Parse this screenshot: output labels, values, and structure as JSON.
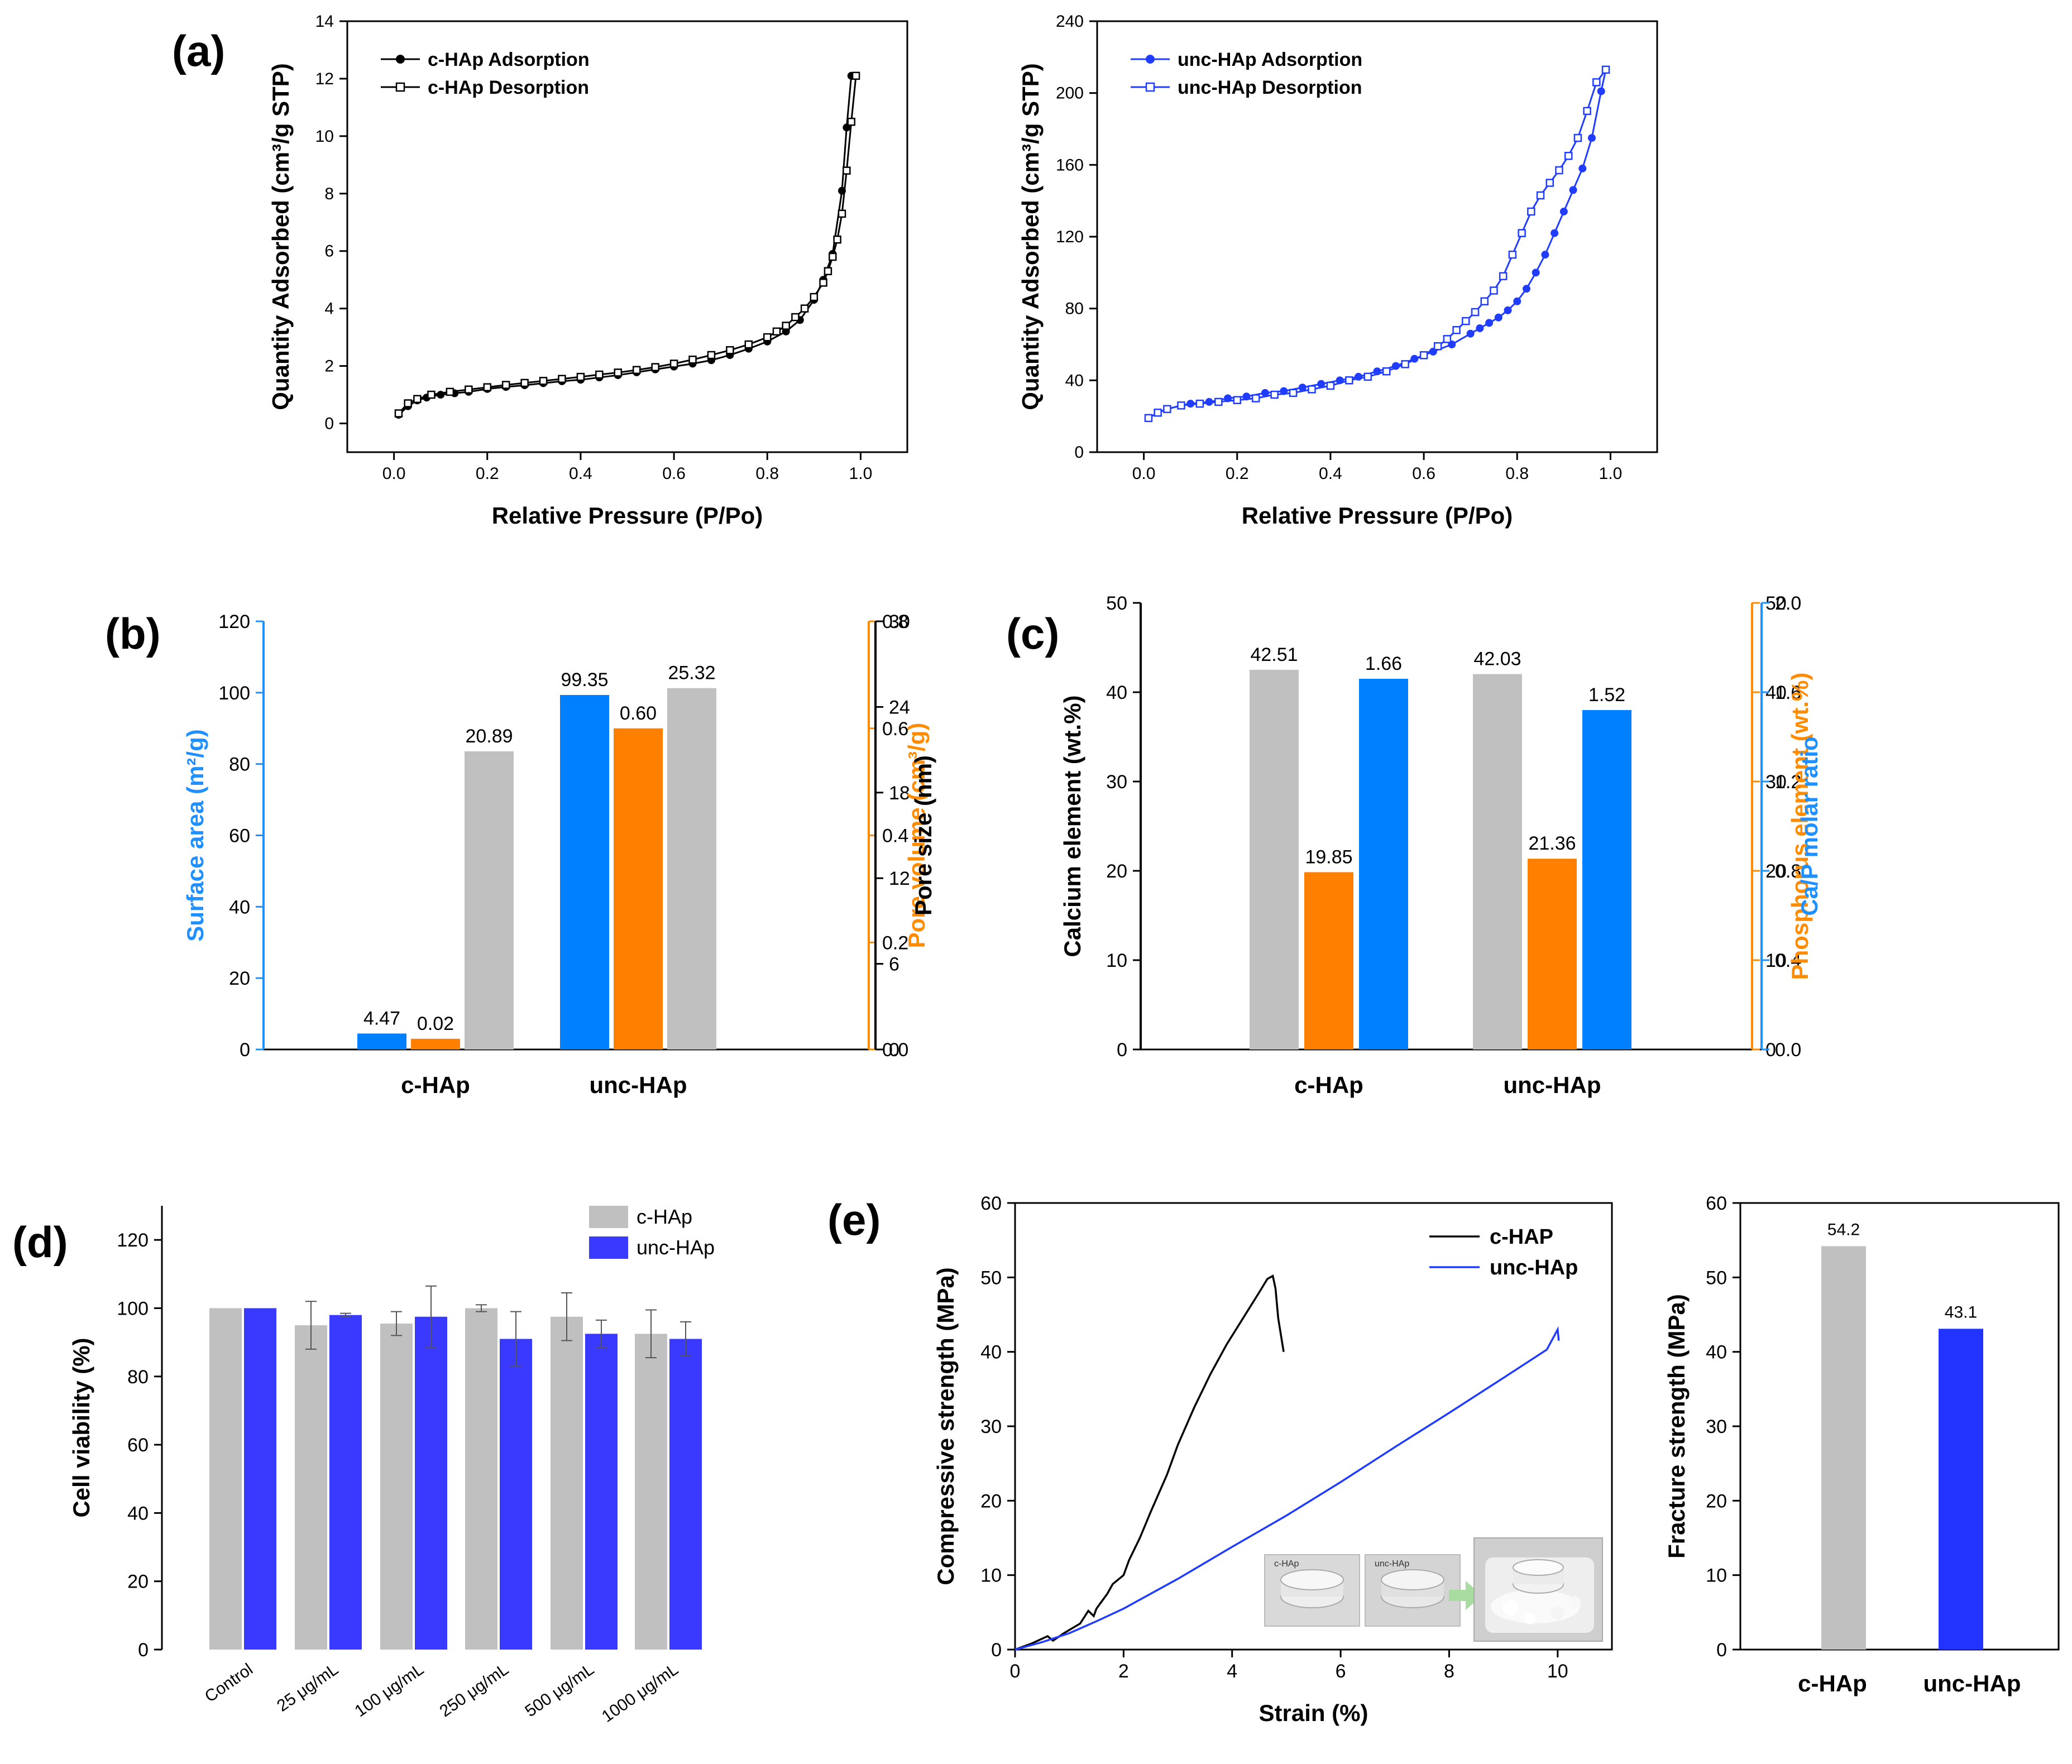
{
  "colors": {
    "black": "#000000",
    "blue_line": "#1f3cff",
    "bar_gray": "#c0c0c0",
    "bar_blue": "#0080ff",
    "bar_orange": "#ff8000",
    "bar_blue_viol": "#3a3aff",
    "axis_blue": "#1e90ff",
    "axis_orange": "#ff8c00"
  },
  "chart_data": [
    {
      "id": "a1",
      "panel_label": "(a)",
      "type": "line",
      "xlabel": "Relative Pressure (P/Po)",
      "ylabel": "Quantity Adsorbed (cm³/g STP)",
      "xlim": [
        -0.1,
        1.1
      ],
      "ylim": [
        -1,
        14
      ],
      "xticks": [
        "0.0",
        "0.2",
        "0.4",
        "0.6",
        "0.8",
        "1.0"
      ],
      "yticks": [
        "0",
        "2",
        "4",
        "6",
        "8",
        "10",
        "12",
        "14"
      ],
      "series": [
        {
          "name": "c-HAp Adsorption",
          "marker": "filled-circle",
          "x": [
            0.01,
            0.03,
            0.05,
            0.07,
            0.1,
            0.13,
            0.16,
            0.2,
            0.24,
            0.28,
            0.32,
            0.36,
            0.4,
            0.44,
            0.48,
            0.52,
            0.56,
            0.6,
            0.64,
            0.68,
            0.72,
            0.76,
            0.8,
            0.84,
            0.87,
            0.9,
            0.92,
            0.94,
            0.96,
            0.97,
            0.98,
            0.99
          ],
          "y": [
            0.3,
            0.6,
            0.8,
            0.9,
            1.0,
            1.05,
            1.1,
            1.2,
            1.27,
            1.33,
            1.4,
            1.47,
            1.52,
            1.6,
            1.68,
            1.78,
            1.88,
            1.98,
            2.08,
            2.2,
            2.38,
            2.6,
            2.85,
            3.2,
            3.6,
            4.3,
            5.0,
            5.9,
            8.1,
            10.3,
            12.1,
            12.1
          ]
        },
        {
          "name": "c-HAp Desorption",
          "marker": "open-square",
          "x": [
            0.99,
            0.98,
            0.97,
            0.96,
            0.95,
            0.94,
            0.93,
            0.92,
            0.9,
            0.88,
            0.86,
            0.84,
            0.82,
            0.8,
            0.76,
            0.72,
            0.68,
            0.64,
            0.6,
            0.56,
            0.52,
            0.48,
            0.44,
            0.4,
            0.36,
            0.32,
            0.28,
            0.24,
            0.2,
            0.16,
            0.12,
            0.08,
            0.05,
            0.03,
            0.01
          ],
          "y": [
            12.1,
            10.5,
            8.8,
            7.3,
            6.4,
            5.8,
            5.3,
            4.9,
            4.4,
            4.0,
            3.7,
            3.4,
            3.2,
            3.0,
            2.75,
            2.55,
            2.38,
            2.22,
            2.08,
            1.96,
            1.86,
            1.77,
            1.7,
            1.62,
            1.55,
            1.48,
            1.41,
            1.34,
            1.26,
            1.18,
            1.1,
            1.0,
            0.85,
            0.7,
            0.35
          ]
        }
      ]
    },
    {
      "id": "a2",
      "type": "line",
      "xlabel": "Relative Pressure (P/Po)",
      "ylabel": "Quantity Adsorbed (cm³/g STP)",
      "xlim": [
        -0.1,
        1.1
      ],
      "ylim": [
        0,
        240
      ],
      "xticks": [
        "0.0",
        "0.2",
        "0.4",
        "0.6",
        "0.8",
        "1.0"
      ],
      "yticks": [
        "0",
        "40",
        "80",
        "120",
        "160",
        "200",
        "240"
      ],
      "series": [
        {
          "name": "unc-HAp Adsorption",
          "marker": "filled-circle",
          "x": [
            0.01,
            0.03,
            0.05,
            0.08,
            0.1,
            0.14,
            0.18,
            0.22,
            0.26,
            0.3,
            0.34,
            0.38,
            0.42,
            0.46,
            0.5,
            0.54,
            0.58,
            0.62,
            0.66,
            0.7,
            0.72,
            0.74,
            0.76,
            0.78,
            0.8,
            0.82,
            0.84,
            0.86,
            0.88,
            0.9,
            0.92,
            0.94,
            0.96,
            0.98,
            0.99
          ],
          "y": [
            19,
            22,
            24,
            26,
            27,
            28,
            30,
            31,
            33,
            34,
            36,
            38,
            40,
            42,
            45,
            48,
            52,
            56,
            60,
            66,
            69,
            72,
            75,
            79,
            84,
            91,
            100,
            110,
            122,
            134,
            146,
            158,
            175,
            201,
            213
          ]
        },
        {
          "name": "unc-HAp Desorption",
          "marker": "open-square",
          "x": [
            0.99,
            0.97,
            0.95,
            0.93,
            0.91,
            0.89,
            0.87,
            0.85,
            0.83,
            0.81,
            0.79,
            0.77,
            0.75,
            0.73,
            0.71,
            0.69,
            0.67,
            0.65,
            0.63,
            0.6,
            0.56,
            0.52,
            0.48,
            0.44,
            0.4,
            0.36,
            0.32,
            0.28,
            0.24,
            0.2,
            0.16,
            0.12,
            0.08,
            0.05,
            0.03,
            0.01
          ],
          "y": [
            213,
            206,
            190,
            175,
            165,
            157,
            150,
            143,
            134,
            122,
            110,
            98,
            90,
            84,
            78,
            73,
            68,
            63,
            59,
            54,
            49,
            45,
            42,
            40,
            37,
            35,
            33,
            32,
            30,
            29,
            28,
            27,
            26,
            24,
            22,
            19
          ]
        }
      ]
    },
    {
      "id": "b",
      "panel_label": "(b)",
      "type": "bar",
      "categories": [
        "c-HAp",
        "unc-HAp"
      ],
      "series": [
        {
          "name": "Surface area",
          "axis": "Surface area (m²/g)",
          "ylim": [
            0,
            120
          ],
          "values": [
            4.47,
            99.35
          ],
          "labels": [
            "4.47",
            "99.35"
          ]
        },
        {
          "name": "Pore volume",
          "axis": "Pore volume (cm³/g)",
          "ylim": [
            0,
            0.8
          ],
          "values": [
            0.02,
            0.6
          ],
          "labels": [
            "0.02",
            "0.60"
          ]
        },
        {
          "name": "Pore size",
          "axis": "Pore size (nm)",
          "ylim": [
            0,
            30
          ],
          "values": [
            20.89,
            25.32
          ],
          "labels": [
            "20.89",
            "25.32"
          ]
        }
      ],
      "axes": {
        "left": {
          "label": "Surface area (m²/g)",
          "ticks": [
            "0",
            "20",
            "40",
            "60",
            "80",
            "100",
            "120"
          ]
        },
        "right1": {
          "label": "Pore volume (cm³/g)",
          "ticks": [
            "0.0",
            "0.2",
            "0.4",
            "0.6",
            "0.8"
          ]
        },
        "right2": {
          "label": "Pore size (nm)",
          "ticks": [
            "0",
            "6",
            "12",
            "18",
            "24",
            "30"
          ]
        }
      }
    },
    {
      "id": "c",
      "panel_label": "(c)",
      "type": "bar",
      "categories": [
        "c-HAp",
        "unc-HAp"
      ],
      "series": [
        {
          "name": "Calcium element",
          "axis": "Calcium element (wt.%)",
          "ylim": [
            0,
            50
          ],
          "values": [
            42.51,
            42.03
          ],
          "labels": [
            "42.51",
            "42.03"
          ]
        },
        {
          "name": "Phosphorus element",
          "axis": "Phosphorus element (wt.%)",
          "ylim": [
            0,
            50
          ],
          "values": [
            19.85,
            21.36
          ],
          "labels": [
            "19.85",
            "21.36"
          ]
        },
        {
          "name": "Ca/P molar ratio",
          "axis": "Ca/P molar ratio",
          "ylim": [
            0,
            2.0
          ],
          "values": [
            1.66,
            1.52
          ],
          "labels": [
            "1.66",
            "1.52"
          ]
        }
      ],
      "axes": {
        "left": {
          "label": "Calcium element (wt.%)",
          "ticks": [
            "0",
            "10",
            "20",
            "30",
            "40",
            "50"
          ]
        },
        "right1": {
          "label": "Phosphorus element (wt.%)",
          "ticks": [
            "0",
            "10",
            "20",
            "30",
            "40",
            "50"
          ]
        },
        "right2": {
          "label": "Ca/P molar ratio",
          "ticks": [
            "0.0",
            "0.4",
            "0.8",
            "1.2",
            "1.6",
            "2.0"
          ]
        }
      }
    },
    {
      "id": "d",
      "panel_label": "(d)",
      "type": "bar",
      "ylabel": "Cell viability (%)",
      "ylim": [
        0,
        130
      ],
      "yticks": [
        "0",
        "20",
        "40",
        "60",
        "80",
        "100",
        "120"
      ],
      "categories": [
        "Control",
        "25 μg/mL",
        "100 μg/mL",
        "250 μg/mL",
        "500 μg/mL",
        "1000 μg/mL"
      ],
      "series": [
        {
          "name": "c-HAp",
          "values": [
            100,
            95,
            95.5,
            100,
            97.5,
            92.5
          ],
          "errors": [
            0,
            7,
            3.5,
            1,
            7,
            7
          ]
        },
        {
          "name": "unc-HAp",
          "values": [
            100,
            98,
            97.5,
            91,
            92.5,
            91
          ],
          "errors": [
            0,
            0.5,
            9,
            8,
            4,
            5
          ]
        }
      ]
    },
    {
      "id": "e1",
      "panel_label": "(e)",
      "type": "line",
      "xlabel": "Strain (%)",
      "ylabel": "Compressive strength (MPa)",
      "xlim": [
        0,
        11
      ],
      "ylim": [
        0,
        60
      ],
      "xticks": [
        "0",
        "2",
        "4",
        "6",
        "8",
        "10"
      ],
      "yticks": [
        "0",
        "10",
        "20",
        "30",
        "40",
        "50",
        "60"
      ],
      "series": [
        {
          "name": "c-HAP",
          "x": [
            0,
            0.3,
            0.6,
            0.7,
            0.9,
            1.2,
            1.35,
            1.45,
            1.5,
            1.6,
            1.7,
            1.8,
            2.0,
            2.1,
            2.3,
            2.5,
            2.8,
            3.0,
            3.3,
            3.6,
            3.9,
            4.2,
            4.5,
            4.65,
            4.75,
            4.8,
            4.85,
            4.95
          ],
          "y": [
            0,
            0.8,
            1.8,
            1.2,
            2.2,
            3.5,
            5.2,
            4.5,
            5.5,
            6.5,
            7.5,
            8.8,
            10.0,
            12,
            15,
            18.5,
            23.5,
            27.5,
            32.5,
            37,
            41,
            44.5,
            48,
            49.8,
            50.2,
            48.5,
            44.5,
            40
          ]
        },
        {
          "name": "unc-HAp",
          "x": [
            0,
            0.5,
            1,
            1.5,
            2,
            3,
            4,
            5,
            6,
            7,
            8,
            9,
            9.8,
            10,
            10.02
          ],
          "y": [
            0,
            1.0,
            2.2,
            3.8,
            5.5,
            9.5,
            13.8,
            18,
            22.5,
            27.2,
            31.8,
            36.5,
            40.3,
            43,
            41.5
          ]
        }
      ]
    },
    {
      "id": "e2",
      "type": "bar",
      "ylabel": "Fracture strength (MPa)",
      "ylim": [
        0,
        60
      ],
      "yticks": [
        "0",
        "10",
        "20",
        "30",
        "40",
        "50",
        "60"
      ],
      "categories": [
        "c-HAp",
        "unc-HAp"
      ],
      "values": [
        54.2,
        43.1
      ],
      "labels": [
        "54.2",
        "43.1"
      ]
    }
  ],
  "inset_photo": {
    "labels": [
      "c-HAp",
      "unc-HAp"
    ]
  }
}
